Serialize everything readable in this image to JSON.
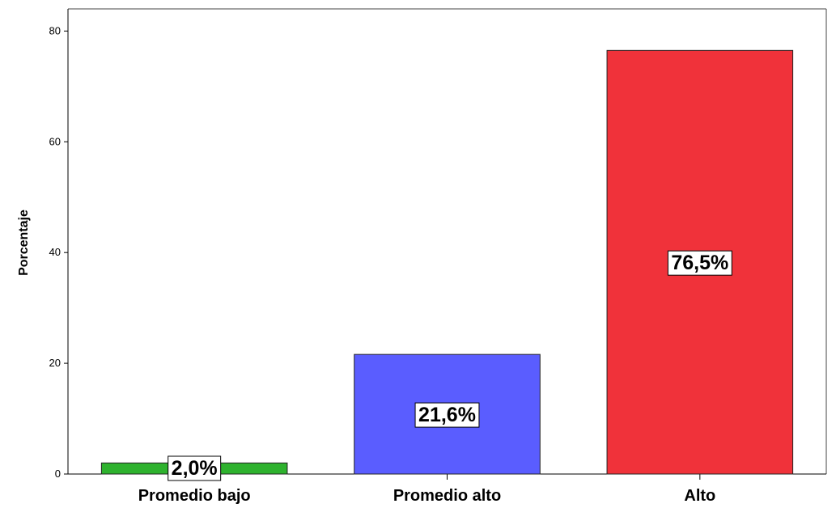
{
  "chart_data": {
    "type": "bar",
    "categories": [
      "Promedio bajo",
      "Promedio alto",
      "Alto"
    ],
    "values": [
      2.0,
      21.6,
      76.5
    ],
    "data_labels": [
      "2,0%",
      "21,6%",
      "76,5%"
    ],
    "colors": [
      "#2eb22e",
      "#5a5dff",
      "#f0323a"
    ],
    "title": "",
    "xlabel": "",
    "ylabel": "Porcentaje",
    "ylim": [
      0,
      84
    ],
    "yticks": [
      0,
      20,
      40,
      60,
      80
    ],
    "grid": false,
    "legend": "none"
  }
}
